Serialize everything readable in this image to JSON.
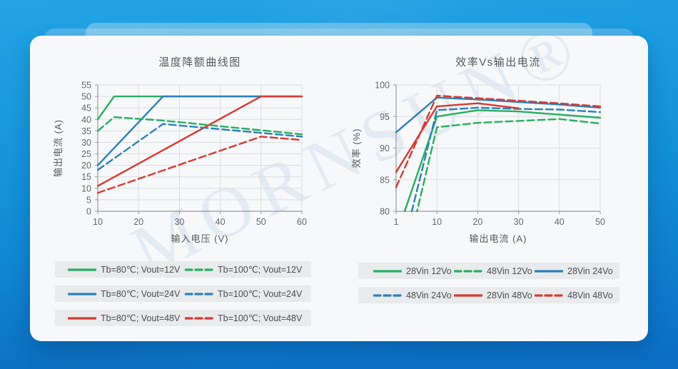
{
  "page": {
    "card_bg": "#f7f8fa",
    "background_top": "#22a4e6",
    "background_bottom": "#0b6dc5",
    "legend_bar_bg": "#e9eaeb"
  },
  "watermark": {
    "text": "MORNSUN®"
  },
  "colors": {
    "green": "#27ae60",
    "blue": "#2980b9",
    "red": "#d93831"
  },
  "chart_data": [
    {
      "type": "line",
      "title": "温度降额曲线图",
      "xlabel": "输入电压 (V)",
      "ylabel": "输出电流 (A)",
      "x_ticks": [
        10,
        20,
        30,
        40,
        50,
        60
      ],
      "y_ticks": [
        0,
        5,
        10,
        15,
        20,
        25,
        30,
        35,
        40,
        45,
        50,
        55
      ],
      "ylim": [
        0,
        55
      ],
      "grid": true,
      "legend_position": "below",
      "series": [
        {
          "name": "Tb=80℃; Vout=12V",
          "color": "#27ae60",
          "dash": false,
          "points": [
            [
              10,
              40
            ],
            [
              14,
              50
            ],
            [
              60,
              50
            ]
          ]
        },
        {
          "name": "Tb=80℃; Vout=24V",
          "color": "#2980b9",
          "dash": false,
          "points": [
            [
              10,
              20
            ],
            [
              26,
              50
            ],
            [
              60,
              50
            ]
          ]
        },
        {
          "name": "Tb=80℃; Vout=48V",
          "color": "#d93831",
          "dash": false,
          "points": [
            [
              10,
              11
            ],
            [
              50,
              50
            ],
            [
              60,
              50
            ]
          ]
        },
        {
          "name": "Tb=100℃; Vout=12V",
          "color": "#27ae60",
          "dash": true,
          "points": [
            [
              10,
              35
            ],
            [
              14,
              41
            ],
            [
              26,
              39.5
            ],
            [
              60,
              33.5
            ]
          ]
        },
        {
          "name": "Tb=100℃; Vout=24V",
          "color": "#2980b9",
          "dash": true,
          "points": [
            [
              10,
              18
            ],
            [
              26,
              38
            ],
            [
              60,
              32.5
            ]
          ]
        },
        {
          "name": "Tb=100℃; Vout=48V",
          "color": "#d93831",
          "dash": true,
          "points": [
            [
              10,
              8
            ],
            [
              50,
              32.5
            ],
            [
              60,
              31
            ]
          ]
        }
      ],
      "legend_rows": [
        [
          0,
          3
        ],
        [
          1,
          4
        ],
        [
          2,
          5
        ]
      ]
    },
    {
      "type": "line",
      "title": "效率Vs输出电流",
      "xlabel": "输出电流 (A)",
      "ylabel": "效率 (%)",
      "x_ticks": [
        1,
        10,
        20,
        30,
        40,
        50
      ],
      "y_ticks": [
        80,
        85,
        90,
        95,
        100
      ],
      "ylim": [
        80,
        100
      ],
      "grid": true,
      "legend_position": "below",
      "series": [
        {
          "name": "28Vin 12Vo",
          "color": "#27ae60",
          "dash": false,
          "points": [
            [
              1,
              76
            ],
            [
              10,
              95
            ],
            [
              20,
              96
            ],
            [
              30,
              95.8
            ],
            [
              40,
              95.3
            ],
            [
              50,
              94.8
            ]
          ]
        },
        {
          "name": "48Vin 12Vo",
          "color": "#27ae60",
          "dash": true,
          "points": [
            [
              1,
              66
            ],
            [
              10,
              93.3
            ],
            [
              20,
              94
            ],
            [
              30,
              94.3
            ],
            [
              40,
              94.6
            ],
            [
              50,
              93.9
            ]
          ]
        },
        {
          "name": "28Vin 24Vo",
          "color": "#2980b9",
          "dash": false,
          "points": [
            [
              1,
              92.5
            ],
            [
              10,
              98
            ],
            [
              20,
              97.7
            ],
            [
              30,
              97.3
            ],
            [
              40,
              96.9
            ],
            [
              50,
              96.4
            ]
          ]
        },
        {
          "name": "48Vin 24Vo",
          "color": "#2980b9",
          "dash": true,
          "points": [
            [
              1,
              70
            ],
            [
              10,
              96
            ],
            [
              20,
              96.4
            ],
            [
              30,
              96.2
            ],
            [
              40,
              96.1
            ],
            [
              50,
              95.7
            ]
          ]
        },
        {
          "name": "28Vin 48Vo",
          "color": "#d93831",
          "dash": false,
          "points": [
            [
              1,
              86.2
            ],
            [
              10,
              96.6
            ],
            [
              20,
              97.1
            ],
            [
              30,
              96.3
            ]
          ]
        },
        {
          "name": "48Vin 48Vo",
          "color": "#d93831",
          "dash": true,
          "points": [
            [
              1,
              83.8
            ],
            [
              10,
              98.3
            ],
            [
              20,
              97.9
            ],
            [
              30,
              97.5
            ],
            [
              40,
              97.1
            ],
            [
              50,
              96.6
            ]
          ]
        }
      ],
      "legend_rows": [
        [
          0,
          1,
          2
        ],
        [
          3,
          4,
          5
        ]
      ]
    }
  ]
}
